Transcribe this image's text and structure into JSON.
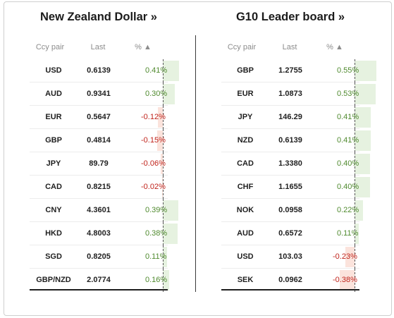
{
  "left": {
    "title": "New Zealand Dollar »",
    "headers": {
      "pair": "Ccy pair",
      "last": "Last",
      "pct": "% ▲"
    },
    "rows": [
      {
        "pair": "USD",
        "last": "0.6139",
        "pct": "0.41%",
        "value": 0.41
      },
      {
        "pair": "AUD",
        "last": "0.9341",
        "pct": "0.30%",
        "value": 0.3
      },
      {
        "pair": "EUR",
        "last": "0.5647",
        "pct": "-0.12%",
        "value": -0.12
      },
      {
        "pair": "GBP",
        "last": "0.4814",
        "pct": "-0.15%",
        "value": -0.15
      },
      {
        "pair": "JPY",
        "last": "89.79",
        "pct": "-0.06%",
        "value": -0.06
      },
      {
        "pair": "CAD",
        "last": "0.8215",
        "pct": "-0.02%",
        "value": -0.02
      },
      {
        "pair": "CNY",
        "last": "4.3601",
        "pct": "0.39%",
        "value": 0.39
      },
      {
        "pair": "HKD",
        "last": "4.8003",
        "pct": "0.38%",
        "value": 0.38
      },
      {
        "pair": "SGD",
        "last": "0.8205",
        "pct": "0.11%",
        "value": 0.11
      },
      {
        "pair": "GBP/NZD",
        "last": "2.0774",
        "pct": "0.16%",
        "value": 0.16
      }
    ]
  },
  "right": {
    "title": "G10 Leader board »",
    "headers": {
      "pair": "Ccy pair",
      "last": "Last",
      "pct": "% ▲"
    },
    "rows": [
      {
        "pair": "GBP",
        "last": "1.2755",
        "pct": "0.55%",
        "value": 0.55
      },
      {
        "pair": "EUR",
        "last": "1.0873",
        "pct": "0.53%",
        "value": 0.53
      },
      {
        "pair": "JPY",
        "last": "146.29",
        "pct": "0.41%",
        "value": 0.41
      },
      {
        "pair": "NZD",
        "last": "0.6139",
        "pct": "0.41%",
        "value": 0.41
      },
      {
        "pair": "CAD",
        "last": "1.3380",
        "pct": "0.40%",
        "value": 0.4
      },
      {
        "pair": "CHF",
        "last": "1.1655",
        "pct": "0.40%",
        "value": 0.4
      },
      {
        "pair": "NOK",
        "last": "0.0958",
        "pct": "0.22%",
        "value": 0.22
      },
      {
        "pair": "AUD",
        "last": "0.6572",
        "pct": "0.11%",
        "value": 0.11
      },
      {
        "pair": "USD",
        "last": "103.03",
        "pct": "-0.23%",
        "value": -0.23
      },
      {
        "pair": "SEK",
        "last": "0.0962",
        "pct": "-0.38%",
        "value": -0.38
      }
    ]
  },
  "colors": {
    "positive_text": "#4f8a2e",
    "negative_text": "#c0231b",
    "positive_bar": "#e6f2e0",
    "negative_bar": "#fbe3dc"
  }
}
